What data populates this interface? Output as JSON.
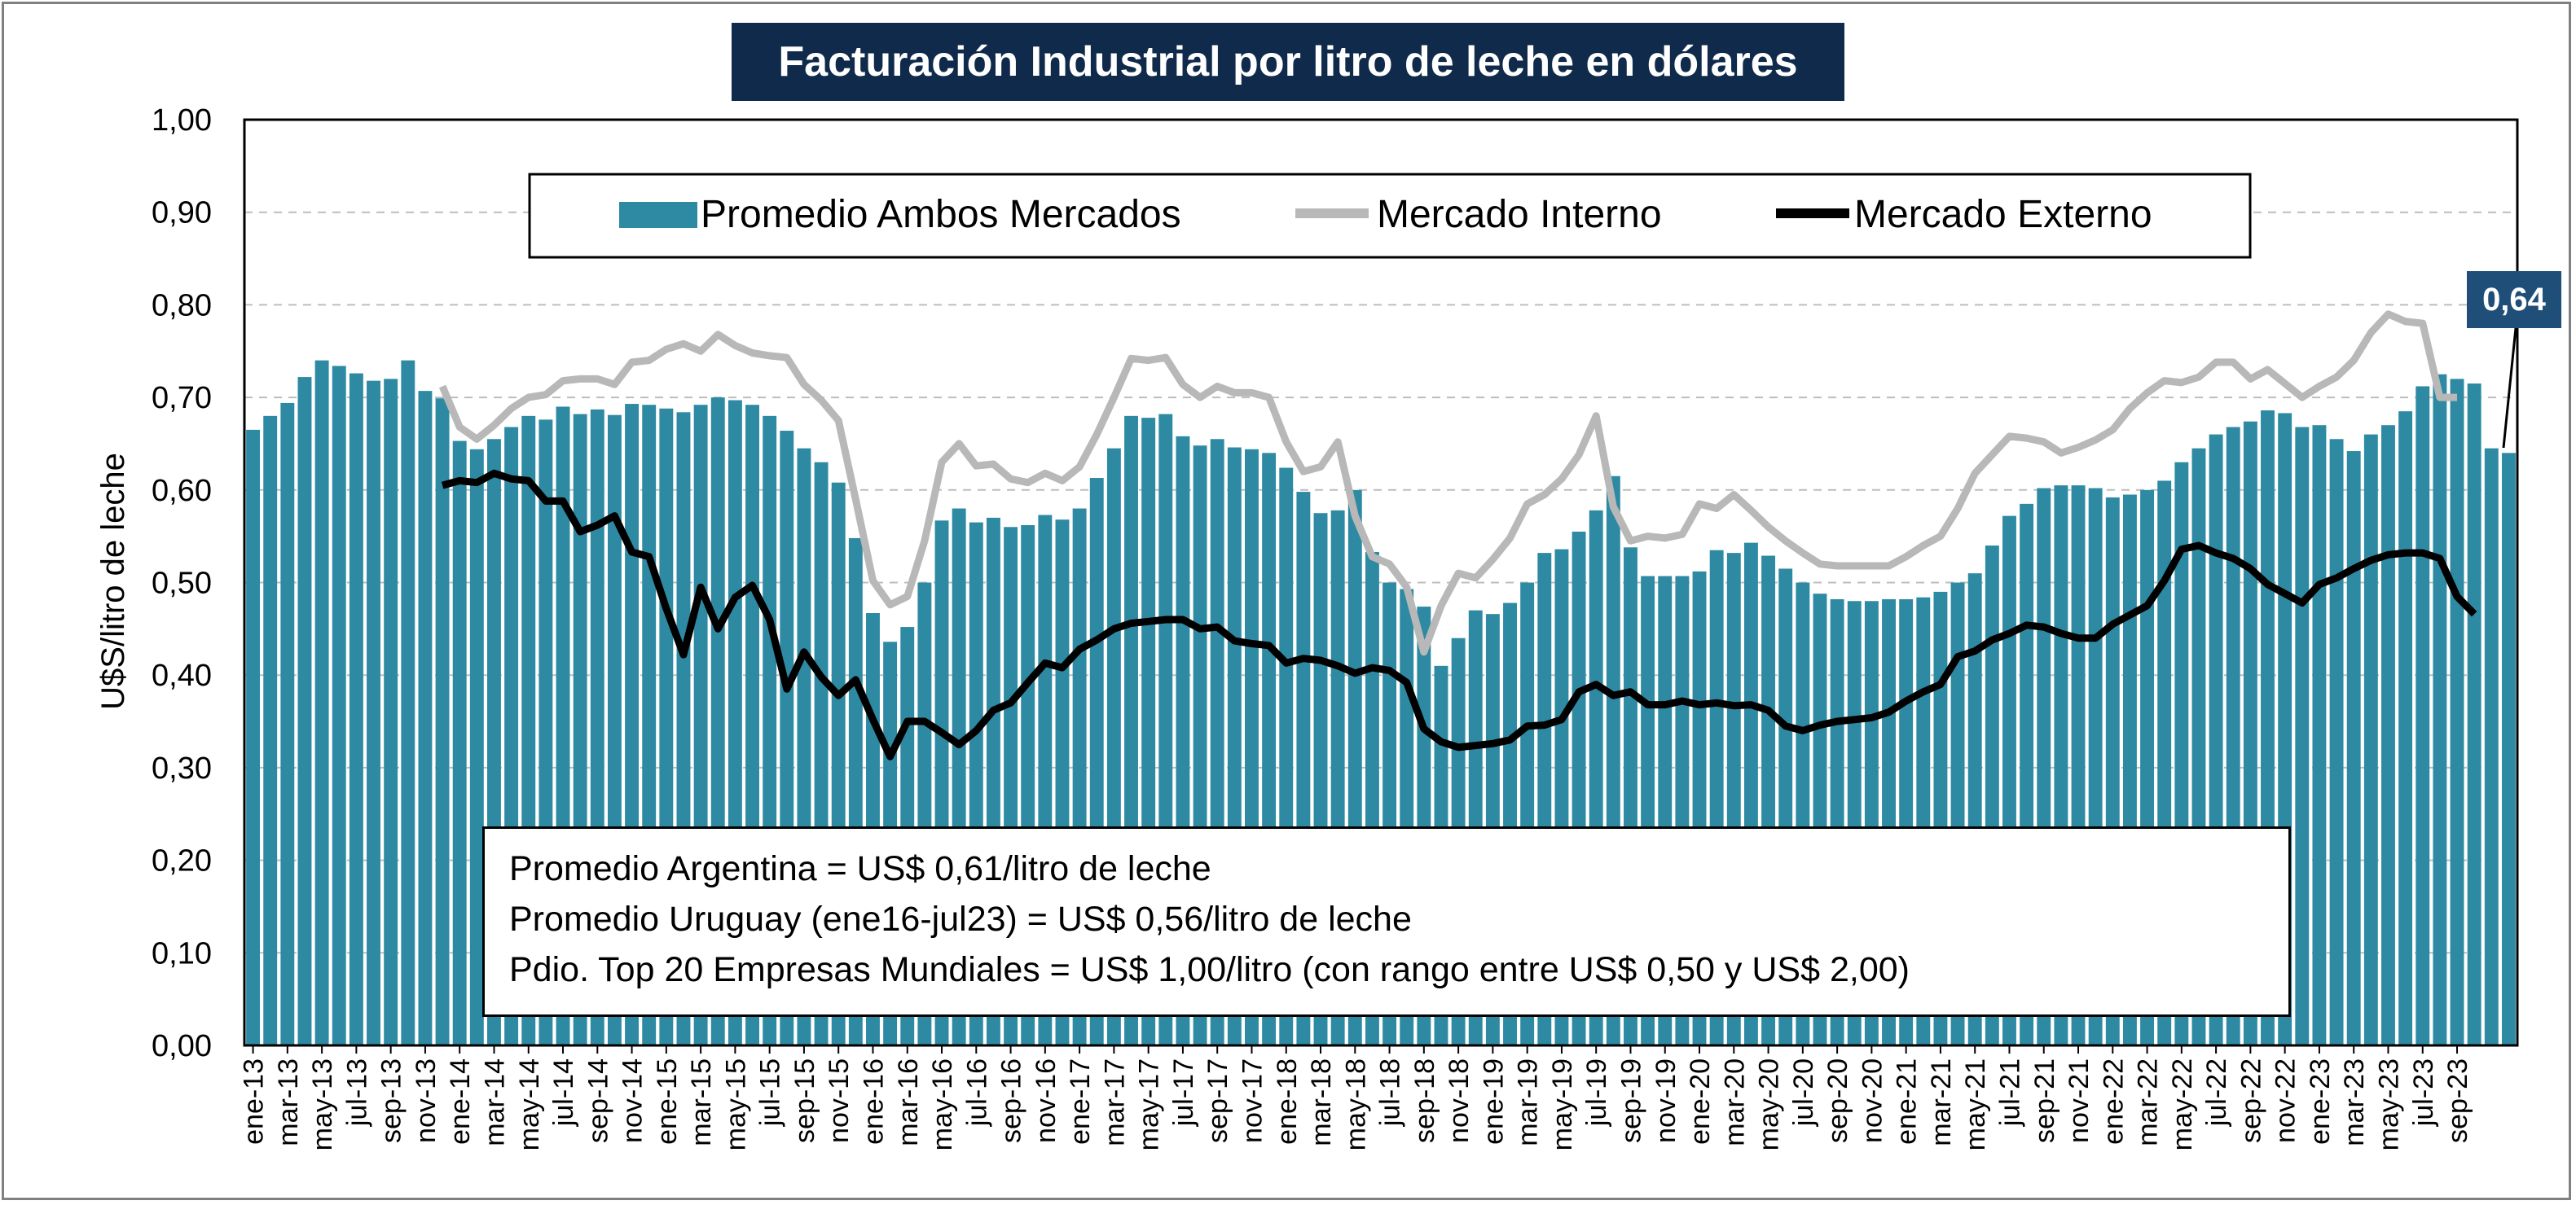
{
  "title": "Facturación Industrial por litro de leche en dólares",
  "ylabel": "U$S/litro de leche",
  "y_ticks": [
    "0,00",
    "0,10",
    "0,20",
    "0,30",
    "0,40",
    "0,50",
    "0,60",
    "0,70",
    "0,80",
    "0,90",
    "1,00"
  ],
  "legend": {
    "bars": "Promedio Ambos Mercados",
    "interno": "Mercado Interno",
    "externo": "Mercado Externo"
  },
  "notes": [
    "Promedio Argentina = US$ 0,61/litro de leche",
    "Promedio Uruguay (ene16-jul23) = US$ 0,56/litro de leche",
    "Pdio. Top 20 Empresas Mundiales = US$ 1,00/litro (con rango entre US$ 0,50 y US$ 2,00)"
  ],
  "last_value_label": "0,64",
  "colors": {
    "bars": "#2e8aa3",
    "interno": "#b8b8b8",
    "externo": "#000000",
    "title_bg": "#0f2a4a",
    "label_bg": "#1f4e79"
  },
  "chart_data": {
    "type": "bar+line",
    "title": "Facturación Industrial por litro de leche en dólares",
    "xlabel": "",
    "ylabel": "U$S/litro de leche",
    "ylim": [
      0,
      1.0
    ],
    "grid": "horizontal dashed",
    "legend_position": "top-center",
    "x_tick_labels": [
      "ene-13",
      "mar-13",
      "may-13",
      "jul-13",
      "sep-13",
      "nov-13",
      "ene-14",
      "mar-14",
      "may-14",
      "jul-14",
      "sep-14",
      "nov-14",
      "ene-15",
      "mar-15",
      "may-15",
      "jul-15",
      "sep-15",
      "nov-15",
      "ene-16",
      "mar-16",
      "may-16",
      "jul-16",
      "sep-16",
      "nov-16",
      "ene-17",
      "mar-17",
      "may-17",
      "jul-17",
      "sep-17",
      "nov-17",
      "ene-18",
      "mar-18",
      "may-18",
      "jul-18",
      "sep-18",
      "nov-18",
      "ene-19",
      "mar-19",
      "may-19",
      "jul-19",
      "sep-19",
      "nov-19",
      "ene-20",
      "mar-20",
      "may-20",
      "jul-20",
      "sep-20",
      "nov-20",
      "ene-21",
      "mar-21",
      "may-21",
      "jul-21",
      "sep-21",
      "nov-21",
      "ene-22",
      "mar-22",
      "may-22",
      "jul-22",
      "sep-22",
      "nov-22",
      "ene-23",
      "mar-23",
      "may-23",
      "jul-23",
      "sep-23"
    ],
    "series": [
      {
        "name": "Promedio Ambos Mercados",
        "kind": "bar",
        "start": "ene-13",
        "values": [
          0.665,
          0.68,
          0.694,
          0.722,
          0.74,
          0.734,
          0.726,
          0.718,
          0.72,
          0.74,
          0.707,
          0.699,
          0.653,
          0.644,
          0.655,
          0.668,
          0.68,
          0.676,
          0.69,
          0.682,
          0.687,
          0.681,
          0.693,
          0.692,
          0.688,
          0.684,
          0.692,
          0.7,
          0.697,
          0.692,
          0.68,
          0.664,
          0.645,
          0.63,
          0.608,
          0.548,
          0.467,
          0.436,
          0.452,
          0.5,
          0.567,
          0.58,
          0.565,
          0.57,
          0.56,
          0.562,
          0.573,
          0.568,
          0.58,
          0.613,
          0.645,
          0.68,
          0.678,
          0.682,
          0.658,
          0.648,
          0.655,
          0.646,
          0.644,
          0.64,
          0.624,
          0.598,
          0.575,
          0.578,
          0.6,
          0.533,
          0.5,
          0.493,
          0.474,
          0.41,
          0.44,
          0.47,
          0.466,
          0.478,
          0.5,
          0.532,
          0.536,
          0.555,
          0.578,
          0.615,
          0.538,
          0.507,
          0.507,
          0.507,
          0.512,
          0.535,
          0.532,
          0.543,
          0.529,
          0.515,
          0.5,
          0.488,
          0.482,
          0.48,
          0.48,
          0.482,
          0.482,
          0.484,
          0.49,
          0.5,
          0.51,
          0.54,
          0.572,
          0.585,
          0.602,
          0.605,
          0.605,
          0.602,
          0.592,
          0.595,
          0.6,
          0.61,
          0.63,
          0.645,
          0.66,
          0.668,
          0.674,
          0.686,
          0.683,
          0.668,
          0.67,
          0.655,
          0.642,
          0.66,
          0.67,
          0.685,
          0.712,
          0.725,
          0.72,
          0.715,
          0.645,
          0.64
        ]
      },
      {
        "name": "Mercado Interno",
        "kind": "line",
        "start": "dic-13",
        "values": [
          0.712,
          0.668,
          0.655,
          0.67,
          0.688,
          0.7,
          0.703,
          0.718,
          0.72,
          0.72,
          0.714,
          0.738,
          0.74,
          0.752,
          0.758,
          0.75,
          0.768,
          0.756,
          0.748,
          0.745,
          0.743,
          0.714,
          0.697,
          0.675,
          0.59,
          0.502,
          0.476,
          0.485,
          0.545,
          0.63,
          0.65,
          0.626,
          0.628,
          0.612,
          0.608,
          0.618,
          0.61,
          0.625,
          0.66,
          0.7,
          0.742,
          0.74,
          0.743,
          0.714,
          0.7,
          0.712,
          0.705,
          0.705,
          0.7,
          0.652,
          0.62,
          0.625,
          0.652,
          0.572,
          0.528,
          0.52,
          0.495,
          0.425,
          0.475,
          0.51,
          0.505,
          0.525,
          0.548,
          0.585,
          0.595,
          0.612,
          0.638,
          0.68,
          0.582,
          0.545,
          0.55,
          0.548,
          0.552,
          0.585,
          0.58,
          0.595,
          0.578,
          0.56,
          0.545,
          0.532,
          0.52,
          0.518,
          0.518,
          0.518,
          0.518,
          0.528,
          0.54,
          0.55,
          0.58,
          0.618,
          0.638,
          0.658,
          0.656,
          0.652,
          0.64,
          0.646,
          0.654,
          0.665,
          0.688,
          0.705,
          0.718,
          0.716,
          0.722,
          0.738,
          0.738,
          0.72,
          0.73,
          0.715,
          0.7,
          0.712,
          0.722,
          0.74,
          0.77,
          0.79,
          0.782,
          0.78,
          0.7,
          0.7
        ]
      },
      {
        "name": "Mercado Externo",
        "kind": "line",
        "start": "dic-13",
        "values": [
          0.605,
          0.61,
          0.608,
          0.618,
          0.612,
          0.61,
          0.588,
          0.588,
          0.555,
          0.562,
          0.572,
          0.533,
          0.528,
          0.472,
          0.422,
          0.495,
          0.45,
          0.484,
          0.497,
          0.46,
          0.385,
          0.425,
          0.398,
          0.378,
          0.395,
          0.352,
          0.312,
          0.35,
          0.35,
          0.338,
          0.325,
          0.34,
          0.362,
          0.37,
          0.392,
          0.413,
          0.408,
          0.428,
          0.438,
          0.45,
          0.456,
          0.458,
          0.46,
          0.46,
          0.45,
          0.452,
          0.437,
          0.434,
          0.432,
          0.413,
          0.418,
          0.416,
          0.41,
          0.402,
          0.408,
          0.405,
          0.392,
          0.342,
          0.328,
          0.322,
          0.324,
          0.326,
          0.33,
          0.345,
          0.346,
          0.352,
          0.382,
          0.39,
          0.378,
          0.382,
          0.368,
          0.368,
          0.372,
          0.368,
          0.37,
          0.367,
          0.368,
          0.362,
          0.345,
          0.34,
          0.346,
          0.35,
          0.352,
          0.354,
          0.36,
          0.372,
          0.382,
          0.39,
          0.42,
          0.426,
          0.438,
          0.445,
          0.454,
          0.452,
          0.445,
          0.44,
          0.44,
          0.455,
          0.465,
          0.475,
          0.502,
          0.536,
          0.54,
          0.532,
          0.526,
          0.515,
          0.498,
          0.488,
          0.478,
          0.498,
          0.505,
          0.515,
          0.524,
          0.53,
          0.532,
          0.532,
          0.526,
          0.485,
          0.466
        ]
      }
    ]
  }
}
